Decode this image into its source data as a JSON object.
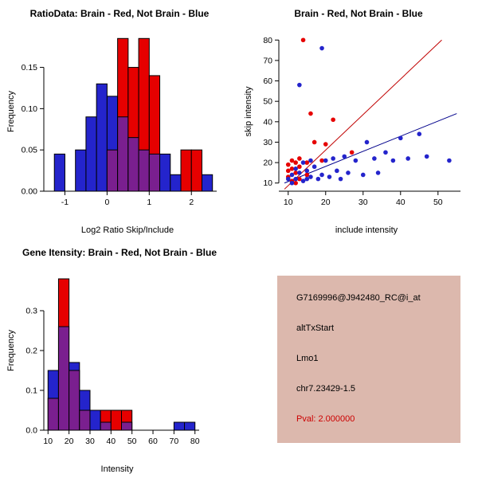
{
  "colors": {
    "blue": "#2424cc",
    "red": "#e60000",
    "overlap": "#7a1f8f",
    "red_line": "#c00000",
    "blue_line": "#00008b",
    "axis": "#000000"
  },
  "chart_data": [
    {
      "type": "bar",
      "id": "hist-ratio",
      "title": "RatioData: Brain - Red, Not Brain - Blue",
      "xlabel": "Log2 Ratio Skip/Include",
      "ylabel": "Frequency",
      "xlim": [
        -1.5,
        2.6
      ],
      "ylim": [
        0,
        0.193
      ],
      "xticks": [
        -1,
        0,
        1,
        2
      ],
      "xtick_labels": [
        "-1",
        "0",
        "1",
        "2"
      ],
      "yticks": [
        0,
        0.05,
        0.1,
        0.15
      ],
      "ytick_labels": [
        "0.00",
        "0.05",
        "0.10",
        "0.15"
      ],
      "bin_width": 0.25,
      "series": [
        {
          "name": "Not Brain",
          "color_key": "blue",
          "bins": [
            {
              "x": -1.25,
              "h": 0.045
            },
            {
              "x": -0.75,
              "h": 0.05
            },
            {
              "x": -0.5,
              "h": 0.09
            },
            {
              "x": -0.25,
              "h": 0.13
            },
            {
              "x": 0,
              "h": 0.115
            },
            {
              "x": 0.25,
              "h": 0.09
            },
            {
              "x": 0.5,
              "h": 0.065
            },
            {
              "x": 0.75,
              "h": 0.05
            },
            {
              "x": 1,
              "h": 0.045
            },
            {
              "x": 1.25,
              "h": 0.045
            },
            {
              "x": 1.5,
              "h": 0.02
            },
            {
              "x": 2.25,
              "h": 0.02
            }
          ]
        },
        {
          "name": "Brain",
          "color_key": "red",
          "bins": [
            {
              "x": 0,
              "h": 0.05
            },
            {
              "x": 0.25,
              "h": 0.185
            },
            {
              "x": 0.5,
              "h": 0.15
            },
            {
              "x": 0.75,
              "h": 0.185
            },
            {
              "x": 1,
              "h": 0.14
            },
            {
              "x": 1.75,
              "h": 0.05
            },
            {
              "x": 2,
              "h": 0.05
            }
          ]
        }
      ]
    },
    {
      "type": "scatter",
      "id": "scatter-intensity",
      "title": "Brain - Red, Not Brain - Blue",
      "xlabel": "include intensity",
      "ylabel": "skip intensity",
      "xlim": [
        7.5,
        56
      ],
      "ylim": [
        6,
        84
      ],
      "xticks": [
        10,
        20,
        30,
        40,
        50
      ],
      "xtick_labels": [
        "10",
        "20",
        "30",
        "40",
        "50"
      ],
      "yticks": [
        10,
        20,
        30,
        40,
        50,
        60,
        70,
        80
      ],
      "ytick_labels": [
        "10",
        "20",
        "30",
        "40",
        "50",
        "60",
        "70",
        "80"
      ],
      "series": [
        {
          "name": "Brain",
          "color_key": "red",
          "points": [
            [
              10,
              19
            ],
            [
              10,
              16
            ],
            [
              10,
              13
            ],
            [
              11,
              21
            ],
            [
              11,
              17
            ],
            [
              11,
              11
            ],
            [
              12,
              20
            ],
            [
              12,
              15
            ],
            [
              12,
              10
            ],
            [
              13,
              22
            ],
            [
              13,
              18
            ],
            [
              13,
              12
            ],
            [
              14,
              80
            ],
            [
              15,
              20
            ],
            [
              15,
              14
            ],
            [
              16,
              44
            ],
            [
              17,
              30
            ],
            [
              19,
              21
            ],
            [
              20,
              29
            ],
            [
              22,
              41
            ],
            [
              27,
              25
            ]
          ]
        },
        {
          "name": "Not Brain",
          "color_key": "blue",
          "points": [
            [
              10,
              12
            ],
            [
              11,
              14
            ],
            [
              11,
              10
            ],
            [
              12,
              17
            ],
            [
              12,
              12
            ],
            [
              13,
              58
            ],
            [
              13,
              15
            ],
            [
              14,
              11
            ],
            [
              14,
              20
            ],
            [
              15,
              16
            ],
            [
              15,
              12
            ],
            [
              16,
              21
            ],
            [
              16,
              13
            ],
            [
              17,
              18
            ],
            [
              18,
              12
            ],
            [
              19,
              76
            ],
            [
              19,
              14
            ],
            [
              20,
              21
            ],
            [
              21,
              13
            ],
            [
              22,
              22
            ],
            [
              23,
              16
            ],
            [
              24,
              12
            ],
            [
              25,
              23
            ],
            [
              26,
              15
            ],
            [
              28,
              21
            ],
            [
              30,
              14
            ],
            [
              31,
              30
            ],
            [
              33,
              22
            ],
            [
              34,
              15
            ],
            [
              36,
              25
            ],
            [
              38,
              21
            ],
            [
              40,
              32
            ],
            [
              42,
              22
            ],
            [
              45,
              34
            ],
            [
              47,
              23
            ],
            [
              53,
              21
            ]
          ]
        }
      ],
      "lines": [
        {
          "color_key": "red_line",
          "x1": 9,
          "y1": 7,
          "x2": 51,
          "y2": 80
        },
        {
          "color_key": "blue_line",
          "x1": 9,
          "y1": 10,
          "x2": 55,
          "y2": 44
        }
      ]
    },
    {
      "type": "bar",
      "id": "hist-gene",
      "title": "Gene Itensity: Brain - Red, Not Brain - Blue",
      "xlabel": "Intensity",
      "ylabel": "Frequency",
      "xlim": [
        8,
        82
      ],
      "ylim": [
        0,
        0.4
      ],
      "xticks": [
        10,
        20,
        30,
        40,
        50,
        60,
        70,
        80
      ],
      "xtick_labels": [
        "10",
        "20",
        "30",
        "40",
        "50",
        "60",
        "70",
        "80"
      ],
      "yticks": [
        0,
        0.1,
        0.2,
        0.3
      ],
      "ytick_labels": [
        "0.0",
        "0.1",
        "0.2",
        "0.3"
      ],
      "bin_width": 5,
      "series": [
        {
          "name": "Not Brain",
          "color_key": "blue",
          "bins": [
            {
              "x": 10,
              "h": 0.15
            },
            {
              "x": 15,
              "h": 0.26
            },
            {
              "x": 20,
              "h": 0.17
            },
            {
              "x": 25,
              "h": 0.1
            },
            {
              "x": 30,
              "h": 0.05
            },
            {
              "x": 35,
              "h": 0.02
            },
            {
              "x": 45,
              "h": 0.02
            },
            {
              "x": 70,
              "h": 0.02
            },
            {
              "x": 75,
              "h": 0.02
            }
          ]
        },
        {
          "name": "Brain",
          "color_key": "red",
          "bins": [
            {
              "x": 10,
              "h": 0.08
            },
            {
              "x": 15,
              "h": 0.38
            },
            {
              "x": 20,
              "h": 0.15
            },
            {
              "x": 25,
              "h": 0.05
            },
            {
              "x": 35,
              "h": 0.05
            },
            {
              "x": 40,
              "h": 0.05
            },
            {
              "x": 45,
              "h": 0.05
            }
          ]
        }
      ]
    }
  ],
  "info_panel": {
    "bg": "#dcb8ad",
    "lines": [
      {
        "text": "G7169996@J942480_RC@i_at",
        "color": "#000000"
      },
      {
        "text": "altTxStart",
        "color": "#000000"
      },
      {
        "text": "Lmo1",
        "color": "#000000"
      },
      {
        "text": "chr7.23429-1.5",
        "color": "#000000"
      },
      {
        "text": "Pval: 2.000000",
        "color": "#cc0000"
      }
    ]
  }
}
